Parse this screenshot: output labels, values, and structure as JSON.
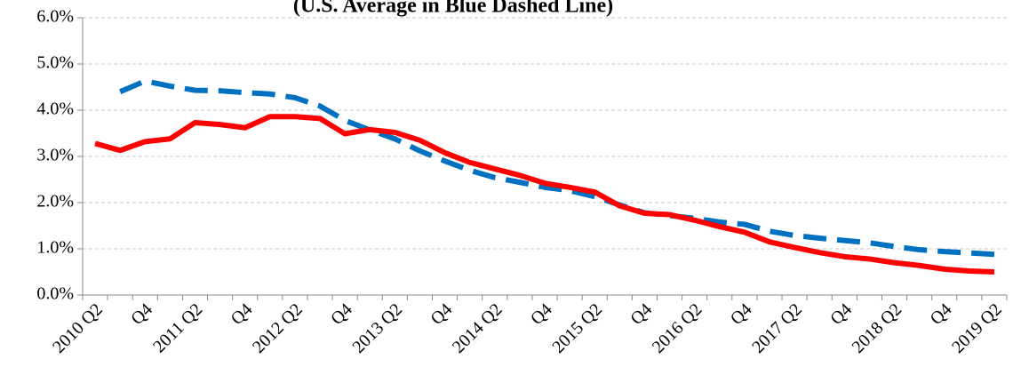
{
  "chart_data": {
    "type": "line",
    "title": "(U.S. Average in Blue Dashed Line)",
    "categories": [
      "2010 Q2",
      null,
      "Q4",
      null,
      "2011 Q2",
      null,
      "Q4",
      null,
      "2012 Q2",
      null,
      "Q4",
      null,
      "2013 Q2",
      null,
      "Q4",
      null,
      "2014 Q2",
      null,
      "Q4",
      null,
      "2015 Q2",
      null,
      "Q4",
      null,
      "2016 Q2",
      null,
      "Q4",
      null,
      "2017 Q2",
      null,
      "Q4",
      null,
      "2018 Q2",
      null,
      "Q4",
      null,
      "2019 Q2"
    ],
    "series": [
      {
        "color": "#ff0000",
        "dashed": false,
        "values": [
          3.28,
          3.13,
          3.32,
          3.38,
          3.73,
          3.69,
          3.62,
          3.86,
          3.86,
          3.82,
          3.49,
          3.58,
          3.52,
          3.35,
          3.08,
          2.87,
          2.73,
          2.59,
          2.42,
          2.33,
          2.23,
          1.93,
          1.77,
          1.74,
          1.62,
          1.48,
          1.36,
          1.15,
          1.03,
          0.92,
          0.83,
          0.78,
          0.7,
          0.64,
          0.56,
          0.52,
          0.5
        ]
      },
      {
        "color": "#0070c0",
        "dashed": true,
        "values": [
          null,
          4.4,
          4.63,
          4.52,
          4.43,
          4.42,
          4.38,
          4.35,
          4.27,
          4.09,
          3.78,
          3.57,
          3.38,
          3.12,
          2.9,
          2.7,
          2.54,
          2.44,
          2.33,
          2.26,
          2.13,
          1.95,
          1.78,
          1.72,
          1.66,
          1.58,
          1.53,
          1.38,
          1.29,
          1.23,
          1.18,
          1.13,
          1.05,
          0.98,
          0.94,
          0.91,
          0.88
        ]
      }
    ],
    "ylim": [
      0,
      6
    ],
    "yticks": [
      {
        "value": 0,
        "label": "0.0%"
      },
      {
        "value": 1,
        "label": "1.0%"
      },
      {
        "value": 2,
        "label": "2.0%"
      },
      {
        "value": 3,
        "label": "3.0%"
      },
      {
        "value": 4,
        "label": "4.0%"
      },
      {
        "value": 5,
        "label": "5.0%"
      },
      {
        "value": 6,
        "label": "6.0%"
      }
    ],
    "grid": true
  }
}
